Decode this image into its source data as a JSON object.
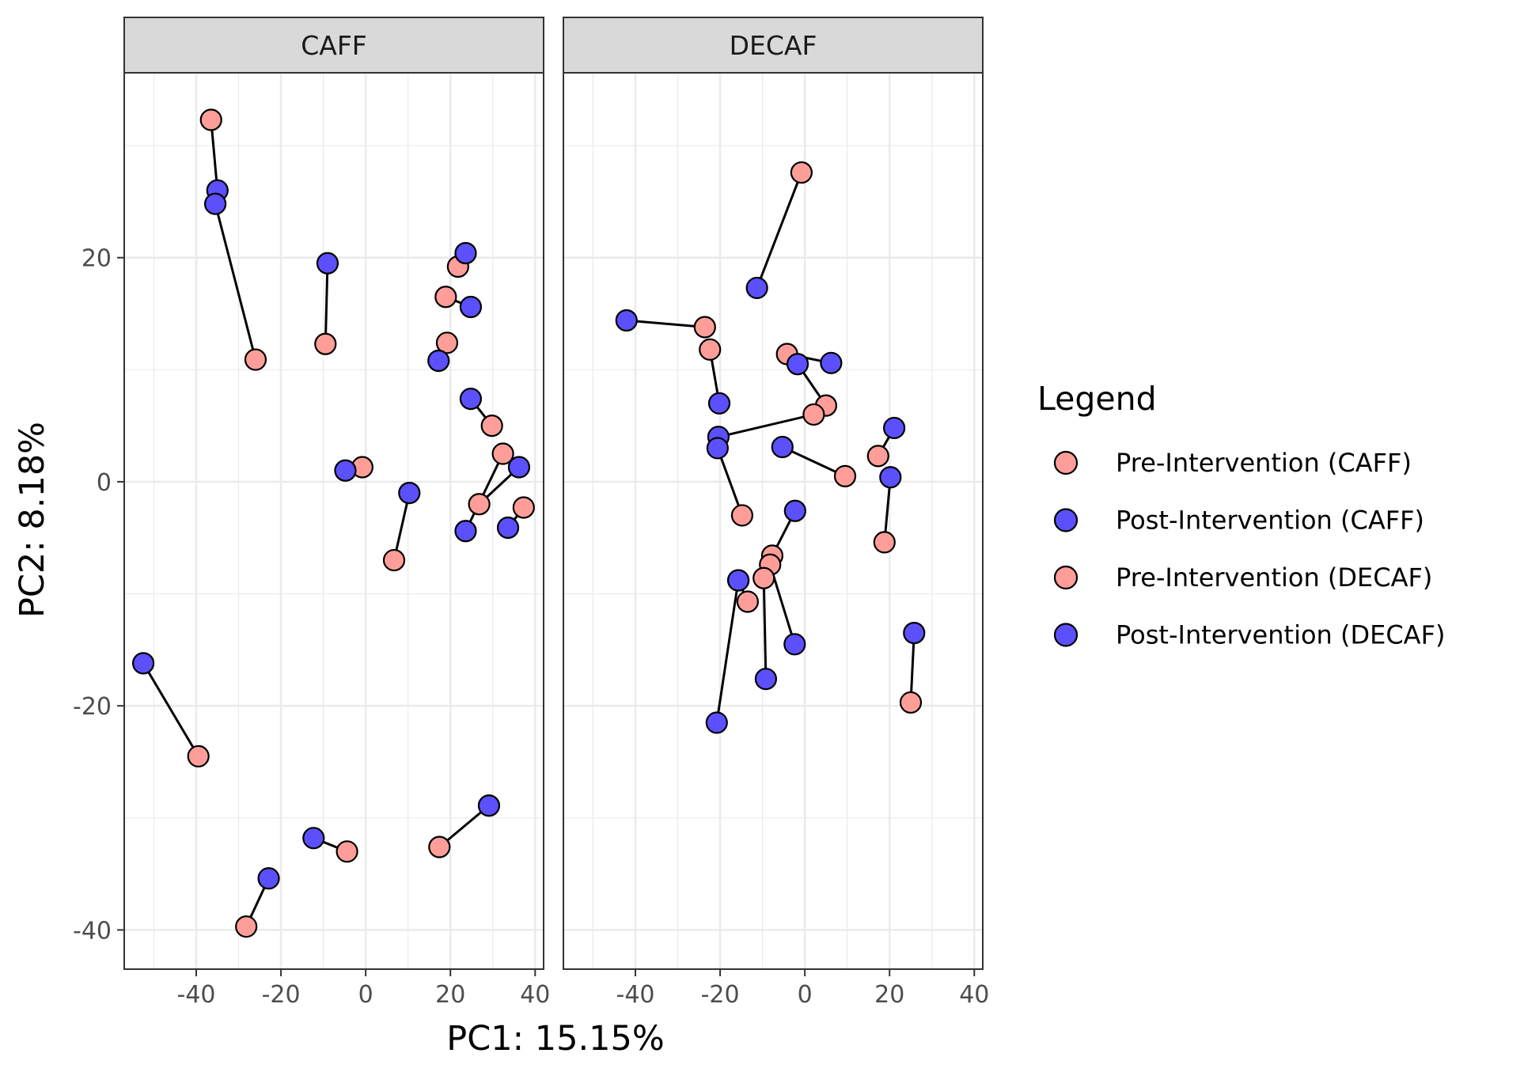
{
  "chart_data": {
    "type": "scatter",
    "xlabel": "PC1: 15.15%",
    "ylabel": "PC2: 8.18%",
    "xlim": [
      -57,
      42
    ],
    "ylim": [
      -43.5,
      36.5
    ],
    "xticks": [
      -40,
      -20,
      0,
      20,
      40
    ],
    "yticks": [
      20,
      0,
      -20,
      -40
    ],
    "grid": true,
    "legend_title": "Legend",
    "legend_position": "right",
    "legend": [
      {
        "label": "Pre-Intervention (CAFF)",
        "color": "#ff9e99"
      },
      {
        "label": "Post-Intervention (CAFF)",
        "color": "#5b50fb"
      },
      {
        "label": "Pre-Intervention (DECAF)",
        "color": "#ff9e99"
      },
      {
        "label": "Post-Intervention (DECAF)",
        "color": "#5b50fb"
      }
    ],
    "pre_color": "#ff9e99",
    "post_color": "#5b50fb",
    "panels": [
      {
        "strip": "CAFF",
        "pairs": [
          {
            "pre": [
              -36.5,
              32.3
            ],
            "post": [
              -35,
              26
            ]
          },
          {
            "pre": [
              -26,
              10.9
            ],
            "post": [
              -35.5,
              24.8
            ]
          },
          {
            "pre": [
              -9.5,
              12.3
            ],
            "post": [
              -9,
              19.5
            ]
          },
          {
            "pre": [
              21.8,
              19.2
            ],
            "post": [
              23.6,
              20.4
            ]
          },
          {
            "pre": [
              18.9,
              16.5
            ],
            "post": [
              24.8,
              15.6
            ]
          },
          {
            "pre": [
              19.2,
              12.4
            ],
            "post": [
              17.2,
              10.8
            ]
          },
          {
            "pre": [
              29.8,
              5
            ],
            "post": [
              24.8,
              7.4
            ]
          },
          {
            "pre": [
              -0.8,
              1.3
            ],
            "post": [
              -4.8,
              1
            ]
          },
          {
            "pre": [
              6.7,
              -7
            ],
            "post": [
              10.3,
              -1
            ]
          },
          {
            "pre": [
              32.4,
              2.5
            ],
            "post": [
              23.6,
              -4.4
            ]
          },
          {
            "pre": [
              26.8,
              -2
            ],
            "post": [
              36.2,
              1.3
            ]
          },
          {
            "pre": [
              37.3,
              -2.3
            ],
            "post": [
              33.6,
              -4.1
            ]
          },
          {
            "pre": [
              -39.5,
              -24.5
            ],
            "post": [
              -52.5,
              -16.2
            ]
          },
          {
            "pre": [
              17.4,
              -32.6
            ],
            "post": [
              29.1,
              -28.9
            ]
          },
          {
            "pre": [
              -4.4,
              -33
            ],
            "post": [
              -12.3,
              -31.8
            ]
          },
          {
            "pre": [
              -28.2,
              -39.7
            ],
            "post": [
              -22.9,
              -35.4
            ]
          }
        ]
      },
      {
        "strip": "DECAF",
        "pairs": [
          {
            "pre": [
              -0.8,
              27.6
            ],
            "post": [
              -11.3,
              17.3
            ]
          },
          {
            "pre": [
              -23.6,
              13.8
            ],
            "post": [
              -42.1,
              14.4
            ]
          },
          {
            "pre": [
              -22.4,
              11.8
            ],
            "post": [
              -20.2,
              7
            ]
          },
          {
            "pre": [
              -4.2,
              11.4
            ],
            "post": [
              6.2,
              10.6
            ]
          },
          {
            "pre": [
              5,
              6.8
            ],
            "post": [
              -1.7,
              10.5
            ]
          },
          {
            "pre": [
              2.1,
              6
            ],
            "post": [
              -20.4,
              4
            ]
          },
          {
            "pre": [
              9.5,
              0.5
            ],
            "post": [
              -5.3,
              3.1
            ]
          },
          {
            "pre": [
              17.3,
              2.3
            ],
            "post": [
              21.1,
              4.8
            ]
          },
          {
            "pre": [
              -14.8,
              -3
            ],
            "post": [
              -20.6,
              3
            ]
          },
          {
            "pre": [
              -7.7,
              -6.6
            ],
            "post": [
              -2.3,
              -2.6
            ]
          },
          {
            "pre": [
              18.8,
              -5.4
            ],
            "post": [
              20.2,
              0.4
            ]
          },
          {
            "pre": [
              -8.2,
              -7.4
            ],
            "post": [
              -2.4,
              -14.5
            ]
          },
          {
            "pre": [
              -9.7,
              -8.6
            ],
            "post": [
              -9.2,
              -17.6
            ]
          },
          {
            "pre": [
              -15.7,
              -8.8
            ],
            "post": [
              -20.8,
              -21.5
            ]
          },
          {
            "pre": [
              -13.5,
              -10.7
            ],
            "post": [
              -15.7,
              -8.8
            ]
          },
          {
            "pre": [
              25,
              -19.7
            ],
            "post": [
              25.8,
              -13.5
            ]
          }
        ]
      }
    ]
  }
}
